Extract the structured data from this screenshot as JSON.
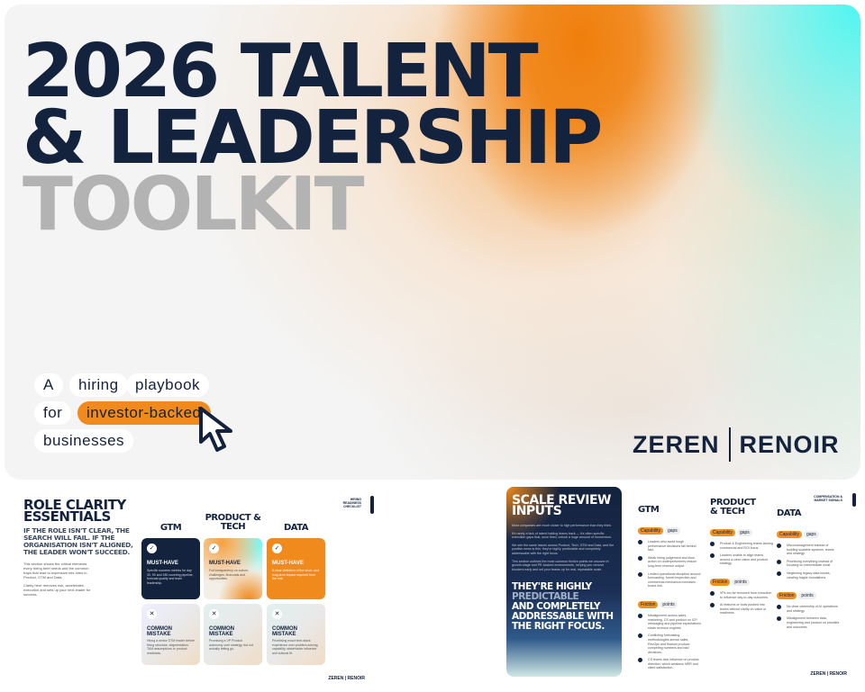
{
  "hero": {
    "title_lines": [
      "2026 TALENT",
      "& LEADERSHIP",
      "TOOLKIT"
    ],
    "pills": [
      "A",
      "hiring",
      "playbook",
      "for",
      "investor-backed",
      "businesses"
    ],
    "logo": {
      "left": "ZEREN",
      "right": "RENOIR"
    }
  },
  "slide1": {
    "title": "ROLE CLARITY ESSENTIALS",
    "tag": "HIRING READINESS CHECKLIST",
    "subtitle": "IF THE ROLE ISN'T CLEAR, THE SEARCH WILL FAIL. IF THE ORGANISATION ISN'T ALIGNED, THE LEADER WON'T SUCCEED.",
    "body": [
      "This section shows the critical elements every hiring brief needs and the common traps that lead to expensive mis-hires in Product, GTM and Data.",
      "Clarity here removes risk, accelerates execution and sets up your next leader for success."
    ],
    "columns": [
      {
        "name": "GTM",
        "must": "MUST-HAVE",
        "must_text": "Specific success metrics for day 30, 90 and 180 covering pipeline, forecast quality and team leadership.",
        "mistake": "COMMON MISTAKE",
        "mistake_text": "Hiring a senior GTM leader before fixing structure, segmentation, TAM assumptions or product readiness."
      },
      {
        "name": "PRODUCT & TECH",
        "must": "MUST-HAVE",
        "must_text": "Full transparency on culture, challenges, financials and opportunities.",
        "mistake": "COMMON MISTAKE",
        "mistake_text": "Promising a VP Product autonomy over strategy, but not actually letting go."
      },
      {
        "name": "DATA",
        "must": "MUST-HAVE",
        "must_text": "A clear definition of the short- and long-term impact required from the role.",
        "mistake": "COMMON MISTAKE",
        "mistake_text": "Prioritising exact tech-stack experience over problem-solving capability, stakeholder influence and cultural fit."
      }
    ],
    "footer": {
      "left": "ZEREN",
      "right": "RENOIR"
    }
  },
  "slide2": {
    "title": "SCALE REVIEW INPUTS",
    "tag": "COMPENSATION & MARKET SIGNALS",
    "body": [
      "Most companies are much closer to high performance than they think.",
      "It's rarely a lack of talent holding teams back — it's often specific execution gaps that, once fixed, unlock a huge amount of momentum.",
      "We see the same issues across Product, Tech, GTM and Data, and the positive news is this: they're highly predictable and completely addressable with the right focus.",
      "This section outlines the most common friction points we uncover in growth-stage and PE-backed environments, helping you remove blockers early and set your teams up for real, repeatable scale."
    ],
    "callout": [
      "THEY'RE HIGHLY",
      "PREDICTABLE",
      "AND COMPLETELY ADDRESSABLE WITH THE RIGHT FOCUS."
    ],
    "columns": [
      {
        "name": "GTM",
        "groups": [
          {
            "a": "Capability",
            "b": "gaps",
            "items": [
              "Leaders who avoid tough performance decisions fall behind fast.",
              "Weak hiring judgement and slow action on underperformers reduce long-term revenue output.",
              "Limited operational discipline around forecasting, funnel inspection and commercial mechanics increases board risk."
            ]
          },
          {
            "a": "Friction",
            "b": "points",
            "items": [
              "Misalignment across sales, marketing, CS and product on ICP, messaging and pipeline expectations slows revenue engines.",
              "Conflicting forecasting methodologies across sales, RevOps and finance produce competing numbers and bad decisions.",
              "CS teams lack influence on product direction, which weakens NRR and client satisfaction."
            ]
          }
        ]
      },
      {
        "name": "PRODUCT & TECH",
        "groups": [
          {
            "a": "Capability",
            "b": "gaps",
            "items": [
              "Product & Engineering teams lacking commercial and ROI focus.",
              "Leaders unable to align teams around a clear vision and product strategy."
            ]
          },
          {
            "a": "Friction",
            "b": "points",
            "items": [
              "VPs too far removed from execution to influence day-to-day outcomes.",
              "AI features or tools pushed into teams without clarity on value or readiness."
            ]
          }
        ]
      },
      {
        "name": "DATA",
        "groups": [
          {
            "a": "Capability",
            "b": "gaps",
            "items": [
              "Micromanagement instead of building scalable systems, teams and strategy.",
              "Prioritising everything instead of focusing on intermediate moat.",
              "Neglecting legacy data issues, creating fragile foundations."
            ]
          },
          {
            "a": "Friction",
            "b": "points",
            "items": [
              "No clear ownership of AI operations and strategy.",
              "Misalignment between data, engineering and product on priorities and outcomes."
            ]
          }
        ]
      }
    ],
    "footer": {
      "left": "ZEREN",
      "right": "RENOIR"
    }
  },
  "colors": {
    "navy": "#13223d",
    "orange": "#f08a1c",
    "cyan": "#4ff5f0"
  }
}
